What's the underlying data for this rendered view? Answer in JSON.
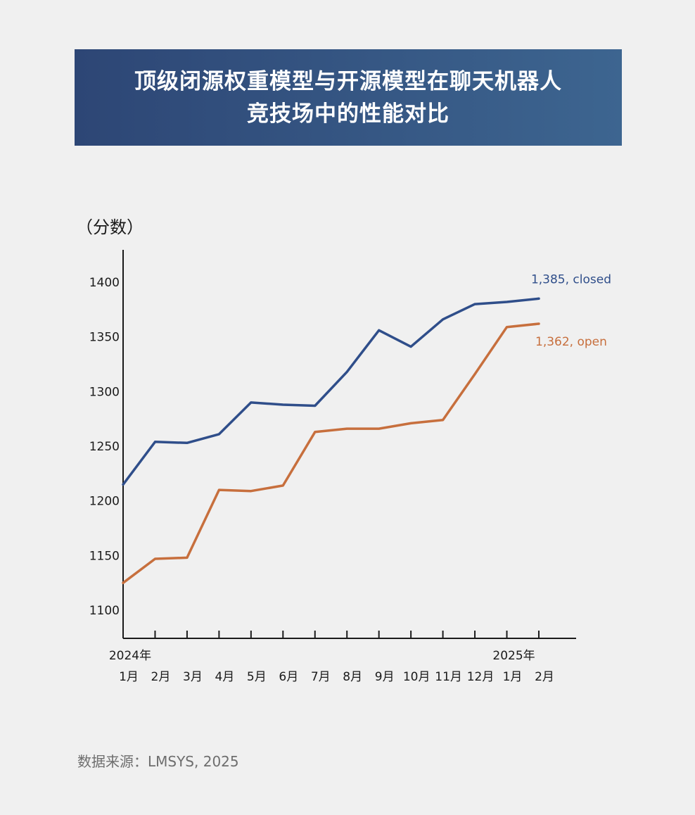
{
  "chart_data": {
    "type": "line",
    "title": "顶级闭源权重模型与开源模型在聊天机器人竞技场中的性能对比",
    "title_lines": [
      "顶级闭源权重模型与开源模型在聊天机器人",
      "竞技场中的性能对比"
    ],
    "ylabel": "（分数）",
    "xlabel": "",
    "ylim": [
      1100,
      1400
    ],
    "yticks": [
      1100,
      1150,
      1200,
      1250,
      1300,
      1350,
      1400
    ],
    "grid": false,
    "year_labels": [
      {
        "index": 0,
        "label": "2024年"
      },
      {
        "index": 12,
        "label": "2025年"
      }
    ],
    "categories": [
      "1月",
      "2月",
      "3月",
      "4月",
      "5月",
      "6月",
      "7月",
      "8月",
      "9月",
      "10月",
      "11月",
      "12月",
      "1月",
      "2月"
    ],
    "series": [
      {
        "name": "closed",
        "color": "#2f4e8a",
        "values": [
          1215,
          1254,
          1253,
          1261,
          1290,
          1288,
          1287,
          1318,
          1356,
          1341,
          1366,
          1380,
          1382,
          1385
        ],
        "end_label": "1,385, closed"
      },
      {
        "name": "open",
        "color": "#c76f3d",
        "values": [
          1125,
          1147,
          1148,
          1210,
          1209,
          1214,
          1263,
          1266,
          1266,
          1271,
          1274,
          1316,
          1359,
          1362
        ],
        "end_label": "1,362, open"
      }
    ]
  },
  "source": "数据来源：LMSYS, 2025",
  "colors": {
    "axis": "#1a1a1a",
    "text": "#1a1a1a",
    "source": "#6e6e6e"
  }
}
